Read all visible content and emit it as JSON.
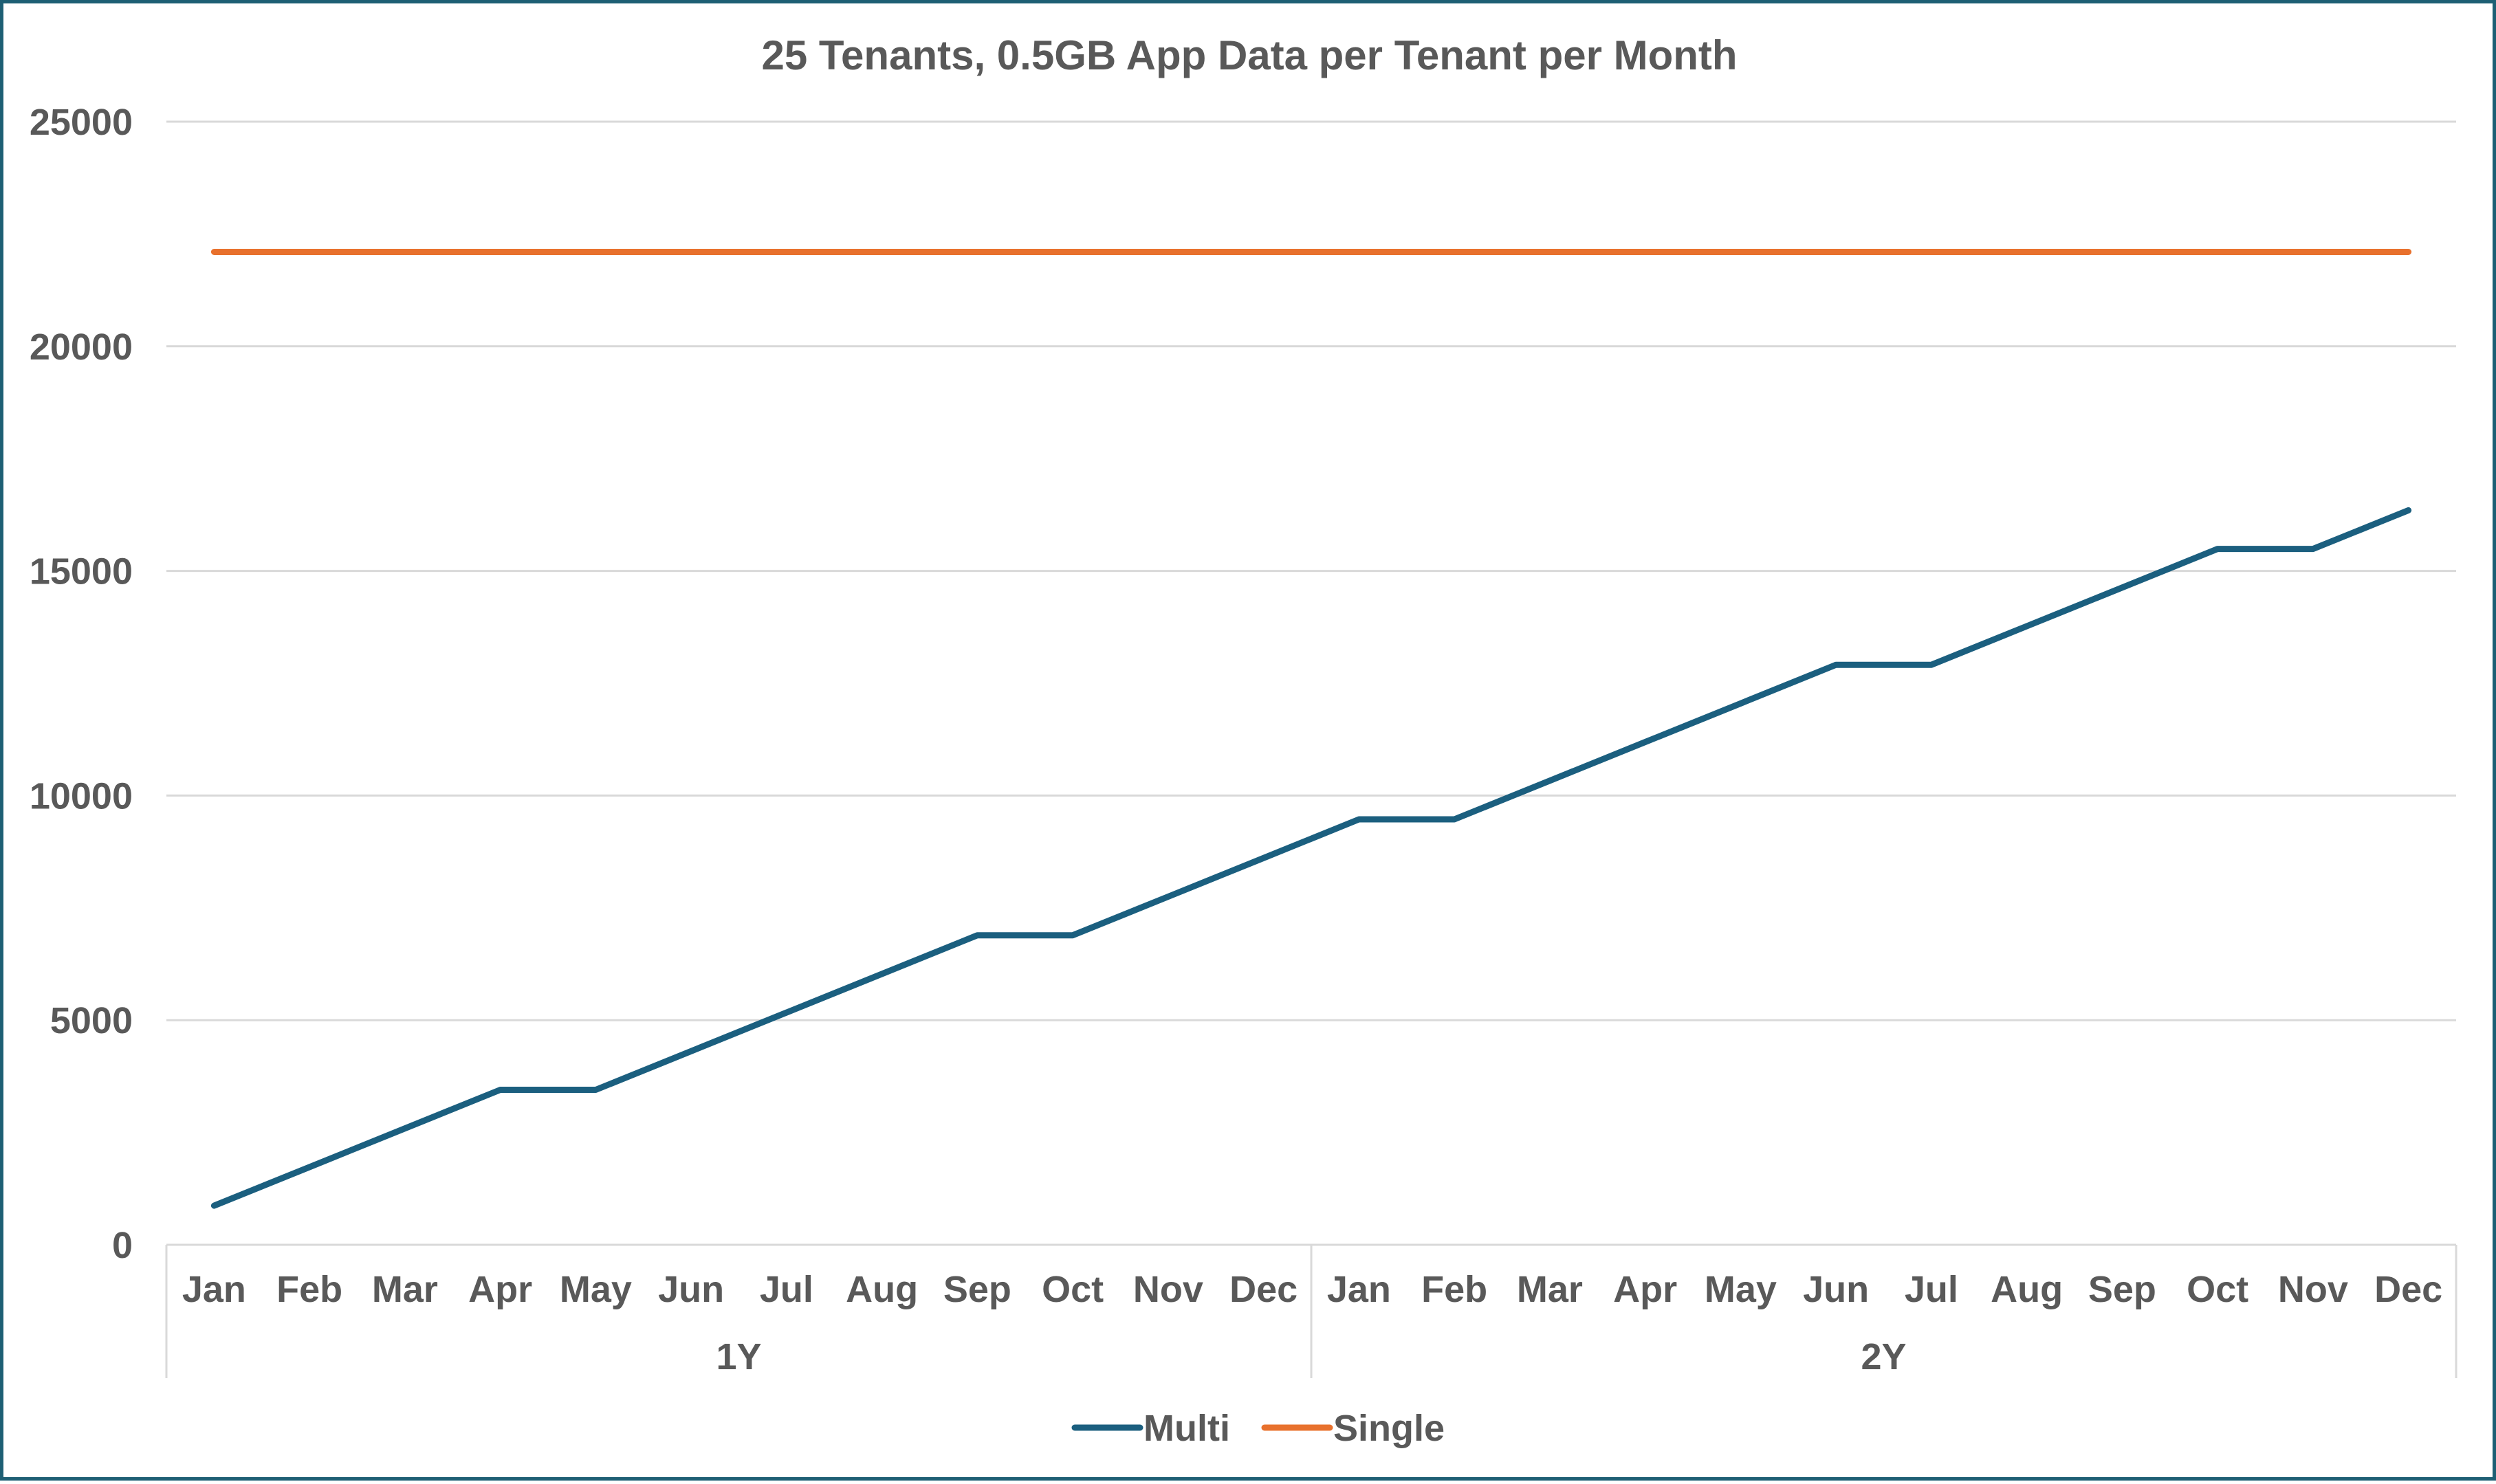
{
  "chart_data": {
    "type": "line",
    "title": "25 Tenants, 0.5GB App Data per Tenant per Month",
    "xlabel": "",
    "ylabel": "",
    "ylim": [
      0,
      25000
    ],
    "yticks": [
      0,
      5000,
      10000,
      15000,
      20000,
      25000
    ],
    "grid": true,
    "legend_position": "bottom",
    "categories": [
      "Jan",
      "Feb",
      "Mar",
      "Apr",
      "May",
      "Jun",
      "Jul",
      "Aug",
      "Sep",
      "Oct",
      "Nov",
      "Dec",
      "Jan",
      "Feb",
      "Mar",
      "Apr",
      "May",
      "Jun",
      "Jul",
      "Aug",
      "Sep",
      "Oct",
      "Nov",
      "Dec"
    ],
    "groups": [
      {
        "label": "1Y",
        "count": 12
      },
      {
        "label": "2Y",
        "count": 12
      }
    ],
    "series": [
      {
        "name": "Multi",
        "color": "#1b5f7f",
        "values": [
          870,
          1730,
          2590,
          3450,
          3450,
          4310,
          5170,
          6030,
          6890,
          6890,
          7750,
          8610,
          9470,
          9470,
          10330,
          11190,
          12050,
          12910,
          12910,
          13770,
          14630,
          15490,
          15490,
          16350
        ]
      },
      {
        "name": "Single",
        "color": "#e8712d",
        "values": [
          22100,
          22100,
          22100,
          22100,
          22100,
          22100,
          22100,
          22100,
          22100,
          22100,
          22100,
          22100,
          22100,
          22100,
          22100,
          22100,
          22100,
          22100,
          22100,
          22100,
          22100,
          22100,
          22100,
          22100
        ]
      }
    ]
  }
}
